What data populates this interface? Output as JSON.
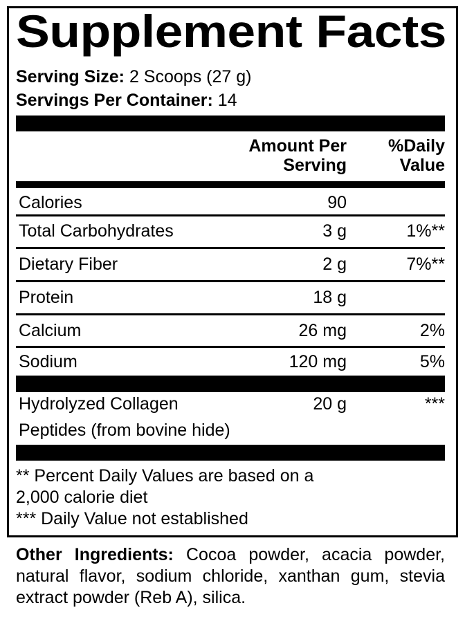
{
  "title": "Supplement Facts",
  "serving_size": {
    "label": "Serving Size:",
    "value": "2 Scoops (27 g)"
  },
  "servings_per_container": {
    "label": "Servings Per Container:",
    "value": "14"
  },
  "header": {
    "amount_line1": "Amount Per",
    "amount_line2": "Serving",
    "dv_line1": "%Daily",
    "dv_line2": "Value"
  },
  "nutrients": [
    {
      "name": "Calories",
      "amount": "90",
      "dv": ""
    },
    {
      "name": "Total Carbohydrates",
      "amount": "3 g",
      "dv": "1%**"
    },
    {
      "name": "Dietary Fiber",
      "amount": "2 g",
      "dv": "7%**"
    },
    {
      "name": "Protein",
      "amount": "18 g",
      "dv": ""
    },
    {
      "name": "Calcium",
      "amount": "26 mg",
      "dv": "2%"
    },
    {
      "name": "Sodium",
      "amount": "120 mg",
      "dv": "5%"
    }
  ],
  "proprietary": {
    "name_line1": "Hydrolyzed Collagen",
    "name_line2": "Peptides (from bovine hide)",
    "amount": "20 g",
    "dv": "***"
  },
  "footnotes": {
    "line1": "** Percent Daily Values are based on a",
    "line2": "2,000 calorie diet",
    "line3": "*** Daily Value not established"
  },
  "other_ingredients": {
    "label": "Other Ingredients:",
    "text": "Cocoa powder, acacia powder, natural flavor, sodium chloride, xanthan gum, stevia extract powder (Reb A), silica."
  }
}
